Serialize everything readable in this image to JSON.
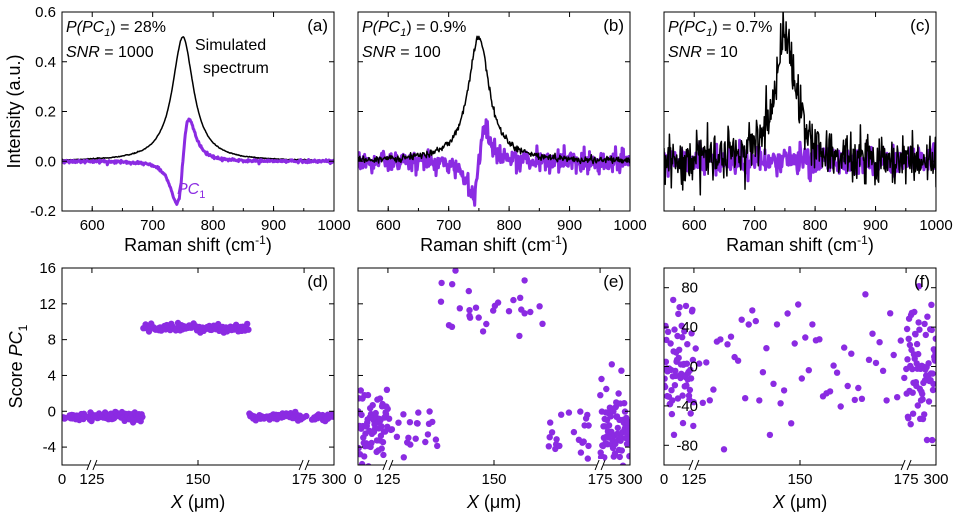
{
  "colors": {
    "pc1": "#8b2be2",
    "simulated": "#000000",
    "frame": "#000000"
  },
  "chart_data": [
    {
      "panel": "(a)",
      "type": "line",
      "xlabel": "Raman shift (cm",
      "xlabel_sup": "-1",
      "xlabel_end": ")",
      "ylabel": "Intensity (a.u.)",
      "xlim": [
        550,
        1000
      ],
      "ylim": [
        -0.2,
        0.6
      ],
      "xticks": [
        600,
        700,
        800,
        900,
        1000
      ],
      "yticks": [
        -0.2,
        0.0,
        0.2,
        0.4,
        0.6
      ],
      "ytick_labels": [
        "-0.2",
        "0.0",
        "0.2",
        "0.4",
        "0.6"
      ],
      "annotation": {
        "p_prefix": "P(PC",
        "p_sub": "1",
        "p_suffix": ") = 28%",
        "snr_label": "SNR",
        "snr_value": " = 1000"
      },
      "series_labels": {
        "simulated_line1": "Simulated",
        "simulated_line2": "spectrum",
        "pc_main": "PC",
        "pc_sub": "1"
      },
      "series": [
        {
          "kind": "simulated",
          "model": "lorentzian",
          "center": 750,
          "amplitude": 0.5,
          "hwhm": 21,
          "noise": 0.001
        },
        {
          "kind": "pc1",
          "model": "derivative",
          "center": 750,
          "min": -0.17,
          "min_at": 740,
          "max": 0.17,
          "max_at": 760,
          "noise": 0.003
        }
      ]
    },
    {
      "panel": "(b)",
      "type": "line",
      "xlabel": "Raman shift (cm",
      "xlabel_sup": "-1",
      "xlabel_end": ")",
      "xlim": [
        550,
        1000
      ],
      "ylim": [
        -0.2,
        0.6
      ],
      "xticks": [
        600,
        700,
        800,
        900,
        1000
      ],
      "annotation": {
        "p_prefix": "P(PC",
        "p_sub": "1",
        "p_suffix": ") = 0.9%",
        "snr_label": "SNR",
        "snr_value": " = 100"
      },
      "series": [
        {
          "kind": "pc1",
          "model": "derivative",
          "center": 750,
          "min": -0.13,
          "min_at": 740,
          "max": 0.12,
          "max_at": 760,
          "noise": 0.022
        },
        {
          "kind": "simulated",
          "model": "lorentzian",
          "center": 750,
          "amplitude": 0.5,
          "hwhm": 21,
          "noise": 0.007
        }
      ]
    },
    {
      "panel": "(c)",
      "type": "line",
      "xlabel": "Raman shift (cm",
      "xlabel_sup": "-1",
      "xlabel_end": ")",
      "xlim": [
        550,
        1000
      ],
      "ylim": [
        -0.2,
        0.6
      ],
      "xticks": [
        600,
        700,
        800,
        900,
        1000
      ],
      "annotation": {
        "p_prefix": "P(PC",
        "p_sub": "1",
        "p_suffix": ") = 0.7%",
        "snr_label": "SNR",
        "snr_value": " = 10"
      },
      "series": [
        {
          "kind": "pc1",
          "model": "derivative",
          "center": 750,
          "min": -0.02,
          "min_at": 740,
          "max": 0.02,
          "max_at": 760,
          "noise": 0.028
        },
        {
          "kind": "simulated",
          "model": "lorentzian",
          "center": 750,
          "amplitude": 0.5,
          "hwhm": 21,
          "noise": 0.05
        }
      ]
    },
    {
      "panel": "(d)",
      "type": "scatter",
      "xlabel": "X",
      "xlabel_unit": " (μm)",
      "ylabel_prefix": "Score ",
      "ylabel_main": "PC",
      "ylabel_sub": "1",
      "ylim": [
        -6,
        16
      ],
      "yticks": [
        -4,
        0,
        4,
        8,
        12,
        16
      ],
      "ytick_labels": [
        "-4",
        "0",
        "4",
        "8",
        "12",
        "16"
      ],
      "x_axis_broken": true,
      "x_segments": [
        [
          0,
          25
        ],
        [
          125,
          175
        ],
        [
          275,
          300
        ]
      ],
      "xticks": [
        0,
        125,
        150,
        175,
        300
      ],
      "points": [
        {
          "x_from": 0,
          "x_to": 25,
          "n": 28,
          "y_center": -0.6,
          "y_spread": 0.25
        },
        {
          "x_from": 125,
          "x_to": 137,
          "n": 60,
          "y_center": -0.6,
          "y_spread": 0.25
        },
        {
          "x_from": 137,
          "x_to": 162,
          "n": 95,
          "y_center": 9.3,
          "y_spread": 0.25
        },
        {
          "x_from": 162,
          "x_to": 175,
          "n": 60,
          "y_center": -0.6,
          "y_spread": 0.25
        },
        {
          "x_from": 275,
          "x_to": 300,
          "n": 28,
          "y_center": -0.6,
          "y_spread": 0.25
        }
      ]
    },
    {
      "panel": "(e)",
      "type": "scatter",
      "xlabel": "X",
      "xlabel_unit": " (μm)",
      "ylim": [
        -6,
        16
      ],
      "x_axis_broken": true,
      "x_segments": [
        [
          0,
          25
        ],
        [
          125,
          175
        ],
        [
          275,
          300
        ]
      ],
      "xticks": [
        0,
        125,
        150,
        175,
        300
      ],
      "points": [
        {
          "x_from": 0,
          "x_to": 25,
          "n": 70,
          "y_center": -1.5,
          "y_spread": 2.3
        },
        {
          "x_from": 125,
          "x_to": 137,
          "n": 22,
          "y_center": -2.0,
          "y_spread": 1.3
        },
        {
          "x_from": 137,
          "x_to": 162,
          "n": 28,
          "y_center": 11.8,
          "y_spread": 1.6
        },
        {
          "x_from": 162,
          "x_to": 175,
          "n": 22,
          "y_center": -1.8,
          "y_spread": 1.6
        },
        {
          "x_from": 275,
          "x_to": 300,
          "n": 75,
          "y_center": -1.5,
          "y_spread": 2.3
        }
      ]
    },
    {
      "panel": "(f)",
      "type": "scatter",
      "xlabel": "X",
      "xlabel_unit": " (μm)",
      "ylim": [
        -100,
        100
      ],
      "yticks": [
        -80,
        -40,
        0,
        40,
        80
      ],
      "ytick_labels": [
        "-80",
        "-40",
        "0",
        "40",
        "80"
      ],
      "y_ticks_inside": true,
      "x_axis_broken": true,
      "x_segments": [
        [
          0,
          25
        ],
        [
          125,
          175
        ],
        [
          275,
          300
        ]
      ],
      "xticks": [
        0,
        125,
        150,
        175,
        300
      ],
      "points": [
        {
          "x_from": 0,
          "x_to": 25,
          "n": 70,
          "y_center": 0,
          "y_spread": 32
        },
        {
          "x_from": 125,
          "x_to": 175,
          "n": 60,
          "y_center": 0,
          "y_spread": 32
        },
        {
          "x_from": 275,
          "x_to": 300,
          "n": 75,
          "y_center": 0,
          "y_spread": 32
        }
      ]
    }
  ]
}
